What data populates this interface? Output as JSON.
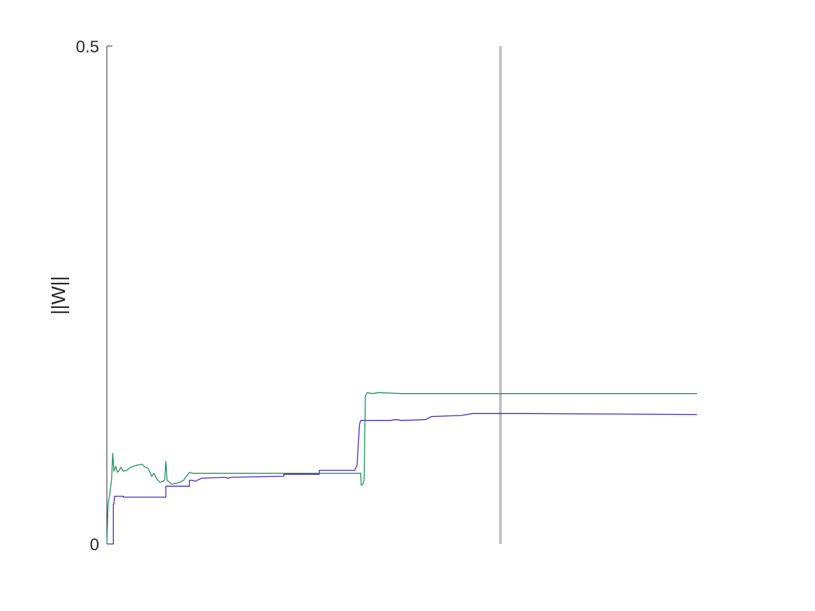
{
  "chart_data": {
    "type": "line",
    "title": "",
    "xlabel": "",
    "ylabel": "||W||",
    "xlim": [
      0,
      1
    ],
    "ylim": [
      0,
      0.5
    ],
    "yticks": [
      {
        "value": 0,
        "label": "0"
      },
      {
        "value": 0.5,
        "label": "0.5"
      }
    ],
    "grid": false,
    "legend": "none",
    "vertical_marker": {
      "x": 0.667,
      "color": "#c0c0c0"
    },
    "series": [
      {
        "color": "#3a1fd0",
        "points": [
          [
            0.0,
            0.0
          ],
          [
            0.011,
            0.0
          ],
          [
            0.011,
            0.04
          ],
          [
            0.012,
            0.04
          ],
          [
            0.013,
            0.048
          ],
          [
            0.028,
            0.048
          ],
          [
            0.028,
            0.047
          ],
          [
            0.1,
            0.047
          ],
          [
            0.1,
            0.058
          ],
          [
            0.14,
            0.058
          ],
          [
            0.14,
            0.064
          ],
          [
            0.144,
            0.064
          ],
          [
            0.15,
            0.063
          ],
          [
            0.16,
            0.066
          ],
          [
            0.2,
            0.067
          ],
          [
            0.206,
            0.066
          ],
          [
            0.21,
            0.067
          ],
          [
            0.3,
            0.068
          ],
          [
            0.3,
            0.07
          ],
          [
            0.36,
            0.07
          ],
          [
            0.36,
            0.074
          ],
          [
            0.42,
            0.074
          ],
          [
            0.424,
            0.079
          ],
          [
            0.428,
            0.12
          ],
          [
            0.43,
            0.124
          ],
          [
            0.48,
            0.124
          ],
          [
            0.49,
            0.125
          ],
          [
            0.5,
            0.124
          ],
          [
            0.54,
            0.125
          ],
          [
            0.55,
            0.128
          ],
          [
            0.6,
            0.129
          ],
          [
            0.62,
            0.131
          ],
          [
            0.7,
            0.131
          ],
          [
            1.0,
            0.13
          ]
        ]
      },
      {
        "color": "#119054",
        "points": [
          [
            0.0,
            0.0
          ],
          [
            0.002,
            0.04
          ],
          [
            0.005,
            0.05
          ],
          [
            0.008,
            0.065
          ],
          [
            0.01,
            0.091
          ],
          [
            0.012,
            0.073
          ],
          [
            0.015,
            0.078
          ],
          [
            0.018,
            0.072
          ],
          [
            0.021,
            0.074
          ],
          [
            0.024,
            0.077
          ],
          [
            0.028,
            0.073
          ],
          [
            0.034,
            0.074
          ],
          [
            0.04,
            0.077
          ],
          [
            0.05,
            0.079
          ],
          [
            0.06,
            0.08
          ],
          [
            0.065,
            0.077
          ],
          [
            0.07,
            0.076
          ],
          [
            0.073,
            0.072
          ],
          [
            0.076,
            0.068
          ],
          [
            0.08,
            0.071
          ],
          [
            0.085,
            0.065
          ],
          [
            0.09,
            0.062
          ],
          [
            0.095,
            0.063
          ],
          [
            0.098,
            0.064
          ],
          [
            0.1,
            0.083
          ],
          [
            0.102,
            0.064
          ],
          [
            0.106,
            0.062
          ],
          [
            0.11,
            0.06
          ],
          [
            0.118,
            0.061
          ],
          [
            0.124,
            0.062
          ],
          [
            0.13,
            0.064
          ],
          [
            0.136,
            0.069
          ],
          [
            0.14,
            0.072
          ],
          [
            0.145,
            0.071
          ],
          [
            0.2,
            0.071
          ],
          [
            0.3,
            0.071
          ],
          [
            0.36,
            0.071
          ],
          [
            0.43,
            0.071
          ],
          [
            0.431,
            0.059
          ],
          [
            0.434,
            0.06
          ],
          [
            0.436,
            0.065
          ],
          [
            0.438,
            0.148
          ],
          [
            0.441,
            0.152
          ],
          [
            0.45,
            0.151
          ],
          [
            0.46,
            0.152
          ],
          [
            0.5,
            0.151
          ],
          [
            0.55,
            0.151
          ],
          [
            0.6,
            0.151
          ],
          [
            0.667,
            0.151
          ],
          [
            1.0,
            0.151
          ]
        ]
      }
    ]
  }
}
